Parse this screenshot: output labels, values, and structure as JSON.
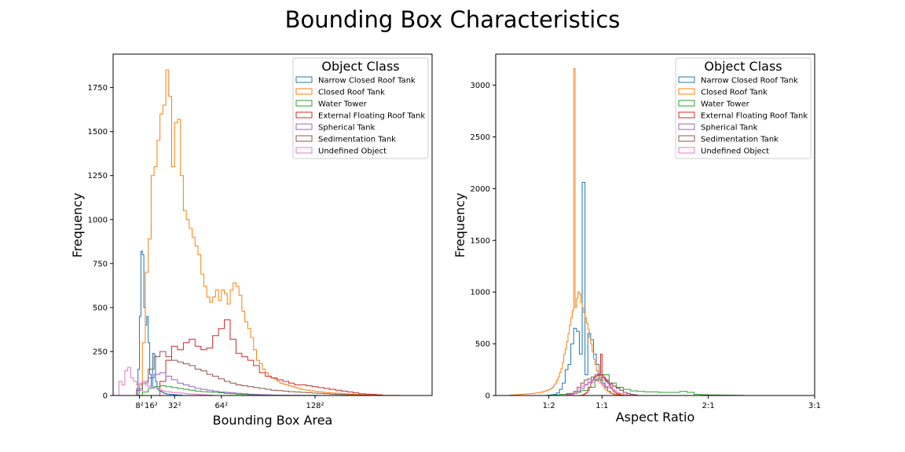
{
  "figure": {
    "title": "Bounding Box Characteristics"
  },
  "chart_data": [
    {
      "type": "histogram",
      "xlabel": "Bounding Box Area",
      "ylabel": "Frequency",
      "xlim": [
        -10,
        208
      ],
      "ylim": [
        0,
        1940
      ],
      "yticks": [
        0,
        250,
        500,
        750,
        1000,
        1250,
        1500,
        1750
      ],
      "xticks": [
        {
          "value": 8,
          "label": "8²"
        },
        {
          "value": 16,
          "label": "16²"
        },
        {
          "value": 32,
          "label": "32²"
        },
        {
          "value": 64,
          "label": "64²"
        },
        {
          "value": 128,
          "label": "128²"
        }
      ],
      "grid": false,
      "legend": {
        "title": "Object Class",
        "position": "top-right",
        "entries": [
          {
            "name": "Narrow Closed Roof Tank",
            "color": "#1f77b4"
          },
          {
            "name": "Closed Roof Tank",
            "color": "#ff7f0e"
          },
          {
            "name": "Water Tower",
            "color": "#2ca02c"
          },
          {
            "name": "External Floating Roof Tank",
            "color": "#d62728"
          },
          {
            "name": "Spherical Tank",
            "color": "#9467bd"
          },
          {
            "name": "Sedimentation Tank",
            "color": "#8c564b"
          },
          {
            "name": "Undefined Object",
            "color": "#e377c2"
          }
        ]
      },
      "series": [
        {
          "name": "Narrow Closed Roof Tank",
          "color": "#1f77b4",
          "bin_width": 1,
          "x0": 7,
          "counts": [
            150,
            450,
            820,
            800,
            500,
            400,
            450,
            300,
            120,
            40,
            240,
            230,
            80,
            40,
            30,
            25,
            20,
            15,
            12,
            10,
            8,
            8,
            6,
            6,
            5,
            4,
            4,
            3,
            3,
            3
          ]
        },
        {
          "name": "Closed Roof Tank",
          "color": "#ff7f0e",
          "bin_width": 2,
          "x0": 8,
          "counts": [
            60,
            300,
            700,
            890,
            1250,
            1300,
            1450,
            1600,
            1650,
            1850,
            1700,
            1300,
            1550,
            1570,
            1250,
            1050,
            1000,
            950,
            900,
            850,
            800,
            690,
            620,
            560,
            530,
            560,
            600,
            540,
            600,
            580,
            520,
            600,
            640,
            620,
            570,
            480,
            420,
            380,
            330,
            260,
            200,
            180,
            150,
            130,
            110,
            100,
            95,
            80,
            70,
            65,
            60,
            55,
            50,
            45,
            40,
            36,
            33,
            30,
            28,
            26,
            24,
            22,
            20,
            18,
            16,
            15,
            14,
            13,
            12,
            11,
            10,
            9,
            8,
            7,
            6,
            5,
            4,
            4,
            3,
            3,
            2,
            2,
            2,
            1,
            1,
            1,
            1,
            1,
            1
          ]
        },
        {
          "name": "Water Tower",
          "color": "#2ca02c",
          "bin_width": 4,
          "x0": 10,
          "counts": [
            20,
            40,
            50,
            55,
            50,
            45,
            40,
            35,
            30,
            25,
            22,
            20,
            18,
            15,
            12,
            10,
            8,
            6,
            5,
            4,
            3,
            3,
            2,
            2,
            2,
            1,
            1,
            1,
            1,
            1
          ]
        },
        {
          "name": "External Floating Roof Tank",
          "color": "#d62728",
          "bin_width": 4,
          "x0": 22,
          "counts": [
            80,
            200,
            280,
            260,
            300,
            320,
            280,
            260,
            270,
            340,
            380,
            430,
            320,
            240,
            220,
            200,
            170,
            130,
            110,
            100,
            90,
            80,
            70,
            60,
            60,
            55,
            50,
            45,
            40,
            35,
            30,
            25,
            20,
            15,
            10,
            8,
            6,
            4
          ]
        },
        {
          "name": "Spherical Tank",
          "color": "#9467bd",
          "bin_width": 4,
          "x0": 6,
          "counts": [
            40,
            70,
            100,
            120,
            130,
            110,
            90,
            70,
            60,
            50,
            40,
            35,
            30,
            25,
            20,
            18,
            15,
            12,
            10,
            8,
            6,
            5,
            4,
            3,
            2,
            2,
            1,
            1
          ]
        },
        {
          "name": "Sedimentation Tank",
          "color": "#8c564b",
          "bin_width": 4,
          "x0": 6,
          "counts": [
            30,
            80,
            150,
            220,
            250,
            220,
            200,
            190,
            180,
            170,
            150,
            140,
            120,
            110,
            95,
            80,
            70,
            60,
            55,
            50,
            45,
            40,
            35,
            30,
            28,
            25,
            22,
            20,
            18,
            16,
            14,
            12,
            10,
            8,
            6,
            5,
            4,
            3,
            2,
            1
          ]
        },
        {
          "name": "Undefined Object",
          "color": "#e377c2",
          "bin_width": 2,
          "x0": -6,
          "counts": [
            80,
            60,
            140,
            160,
            100,
            80,
            60,
            70,
            80,
            60,
            50,
            40,
            45,
            35,
            30,
            25,
            22,
            20,
            18,
            16,
            15,
            14,
            12,
            10,
            9,
            8,
            7,
            6,
            5,
            4,
            3,
            2
          ]
        }
      ]
    },
    {
      "type": "histogram",
      "xlabel": "Aspect Ratio",
      "ylabel": "Frequency",
      "xlim": [
        -1.5,
        3.0
      ],
      "ylim": [
        0,
        3300
      ],
      "yticks": [
        0,
        500,
        1000,
        1500,
        2000,
        2500,
        3000
      ],
      "xticks": [
        {
          "value": -0.75,
          "label": "1:2"
        },
        {
          "value": 0,
          "label": "1:1"
        },
        {
          "value": 1.5,
          "label": "2:1"
        },
        {
          "value": 3,
          "label": "3:1"
        }
      ],
      "grid": false,
      "legend": {
        "title": "Object Class",
        "position": "top-right",
        "entries": [
          {
            "name": "Narrow Closed Roof Tank",
            "color": "#1f77b4"
          },
          {
            "name": "Closed Roof Tank",
            "color": "#ff7f0e"
          },
          {
            "name": "Water Tower",
            "color": "#2ca02c"
          },
          {
            "name": "External Floating Roof Tank",
            "color": "#d62728"
          },
          {
            "name": "Spherical Tank",
            "color": "#9467bd"
          },
          {
            "name": "Sedimentation Tank",
            "color": "#8c564b"
          },
          {
            "name": "Undefined Object",
            "color": "#e377c2"
          }
        ]
      },
      "series": [
        {
          "name": "Narrow Closed Roof Tank",
          "color": "#1f77b4",
          "bin_width": 0.04,
          "x0": -0.8,
          "counts": [
            2,
            4,
            8,
            12,
            25,
            60,
            120,
            250,
            300,
            500,
            650,
            620,
            400,
            2060,
            200,
            600,
            540,
            400,
            300,
            200,
            120,
            80,
            40,
            20,
            10
          ]
        },
        {
          "name": "Closed Roof Tank",
          "color": "#ff7f0e",
          "bin_width": 0.02,
          "x0": -1.3,
          "counts": [
            5,
            5,
            6,
            6,
            7,
            8,
            9,
            10,
            11,
            12,
            13,
            14,
            15,
            16,
            17,
            18,
            20,
            22,
            24,
            26,
            28,
            30,
            32,
            35,
            40,
            45,
            50,
            55,
            60,
            70,
            80,
            100,
            120,
            150,
            180,
            220,
            260,
            320,
            400,
            450,
            520,
            600,
            680,
            750,
            820,
            3160,
            850,
            940,
            1000,
            980,
            900,
            850,
            800,
            750,
            700,
            640,
            560,
            500,
            420,
            350,
            300,
            240,
            200,
            160,
            120,
            100,
            80,
            60,
            50,
            40,
            30,
            25,
            20,
            15,
            12,
            10,
            8,
            6,
            5,
            4
          ]
        },
        {
          "name": "Water Tower",
          "color": "#2ca02c",
          "bin_width": 0.1,
          "x0": -0.7,
          "counts": [
            5,
            10,
            20,
            30,
            50,
            80,
            150,
            200,
            120,
            80,
            60,
            45,
            40,
            35,
            35,
            30,
            30,
            30,
            40,
            30,
            10,
            8,
            6,
            5,
            4,
            3,
            2
          ]
        },
        {
          "name": "External Floating Roof Tank",
          "color": "#d62728",
          "bin_width": 0.02,
          "x0": -0.3,
          "counts": [
            2,
            5,
            10,
            20,
            30,
            50,
            80,
            120,
            150,
            170,
            180,
            190,
            200,
            210,
            400,
            200,
            180,
            160,
            140,
            120,
            100,
            80,
            60,
            40,
            30,
            20,
            15,
            10,
            5,
            3
          ]
        },
        {
          "name": "Spherical Tank",
          "color": "#9467bd",
          "bin_width": 0.05,
          "x0": -0.5,
          "counts": [
            5,
            10,
            20,
            40,
            70,
            100,
            130,
            150,
            160,
            170,
            150,
            130,
            110,
            90,
            70,
            50,
            30,
            20,
            10,
            5
          ]
        },
        {
          "name": "Sedimentation Tank",
          "color": "#8c564b",
          "bin_width": 0.05,
          "x0": -0.5,
          "counts": [
            10,
            20,
            40,
            80,
            120,
            150,
            160,
            180,
            200,
            190,
            170,
            150,
            120,
            90,
            70,
            50,
            30,
            20,
            10,
            5
          ]
        },
        {
          "name": "Undefined Object",
          "color": "#e377c2",
          "bin_width": 0.05,
          "x0": -0.5,
          "counts": [
            5,
            10,
            30,
            60,
            90,
            110,
            120,
            130,
            140,
            130,
            110,
            90,
            70,
            50,
            30,
            20,
            10,
            5
          ]
        }
      ]
    }
  ]
}
